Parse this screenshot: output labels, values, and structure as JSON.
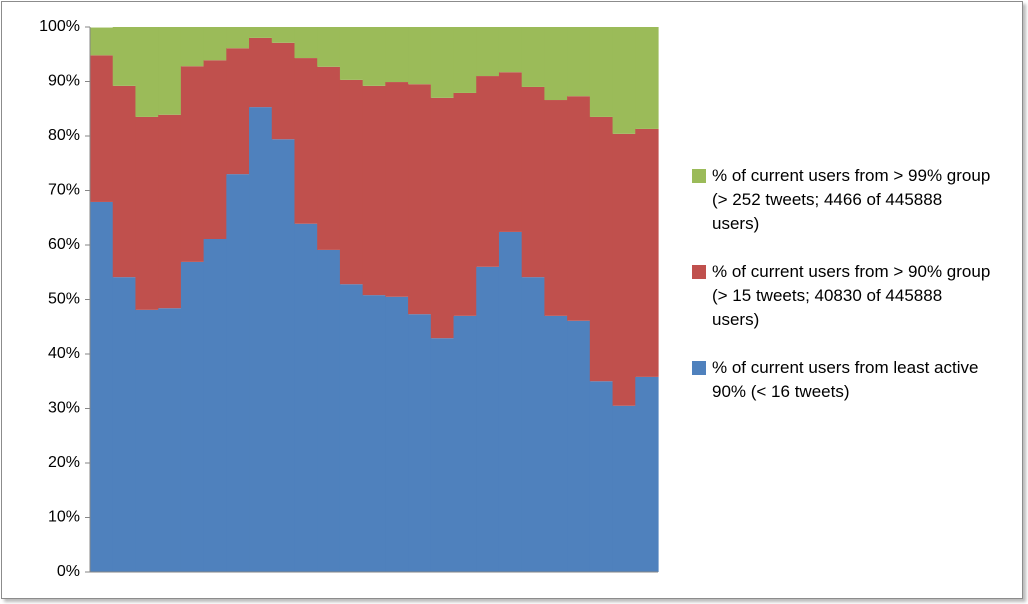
{
  "chart_data": {
    "type": "bar",
    "stacked": true,
    "ylim": [
      0,
      100
    ],
    "yticks": [
      {
        "value": 0,
        "label": "0%"
      },
      {
        "value": 10,
        "label": "10%"
      },
      {
        "value": 20,
        "label": "20%"
      },
      {
        "value": 30,
        "label": "30%"
      },
      {
        "value": 40,
        "label": "40%"
      },
      {
        "value": 50,
        "label": "50%"
      },
      {
        "value": 60,
        "label": "60%"
      },
      {
        "value": 70,
        "label": "70%"
      },
      {
        "value": 80,
        "label": "80%"
      },
      {
        "value": 90,
        "label": "90%"
      },
      {
        "value": 100,
        "label": "100%"
      }
    ],
    "series": [
      {
        "name": "% of current users from least active 90% (< 16 tweets)",
        "color": "#4f81bd",
        "values": [
          67.9,
          54.1,
          48.1,
          48.4,
          56.9,
          61.1,
          73.0,
          85.3,
          79.4,
          63.9,
          59.1,
          52.8,
          50.8,
          50.5,
          47.3,
          42.9,
          47.0,
          56.0,
          62.4,
          54.1,
          47.0,
          46.1,
          35.0,
          30.5,
          35.8
        ]
      },
      {
        "name": "% of current users from > 90% group (> 15 tweets;  40830 of 445888 users)",
        "color": "#c0504d",
        "values": [
          26.9,
          35.1,
          35.4,
          35.5,
          35.9,
          32.8,
          23.1,
          12.7,
          17.7,
          30.4,
          33.6,
          37.5,
          38.4,
          39.4,
          42.2,
          44.1,
          40.9,
          35.0,
          29.3,
          34.9,
          39.6,
          41.2,
          48.5,
          49.9,
          45.5
        ]
      },
      {
        "name": "% of current users from > 99% group (> 252 tweets; 4466 of 445888 users)",
        "color": "#9bbb59",
        "values": [
          5.1,
          10.8,
          16.5,
          16.1,
          7.2,
          6.1,
          3.9,
          2.0,
          2.9,
          5.7,
          7.3,
          9.7,
          10.8,
          10.1,
          10.5,
          13.0,
          12.1,
          9.0,
          8.3,
          11.0,
          13.4,
          12.7,
          16.5,
          19.6,
          18.7
        ]
      }
    ],
    "legend": "right"
  }
}
